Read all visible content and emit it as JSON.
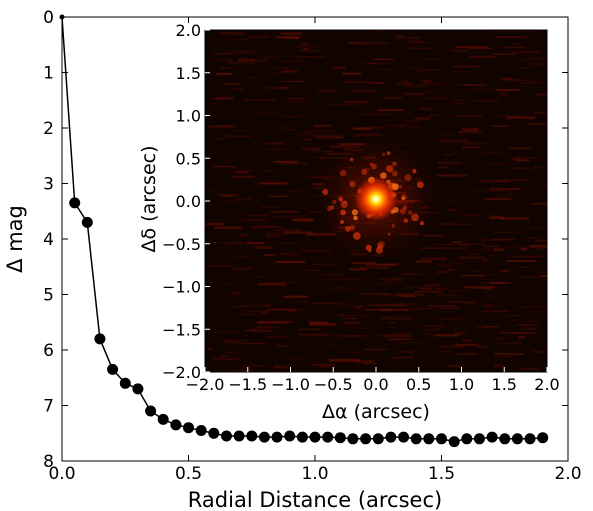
{
  "chart_data": [
    {
      "type": "line",
      "xlabel": "Radial Distance (arcsec)",
      "ylabel": "Δ mag",
      "xlim": [
        0.0,
        2.0
      ],
      "ylim": [
        0,
        8
      ],
      "y_inverted": true,
      "grid": false,
      "x_ticks": [
        "0.0",
        "0.5",
        "1.0",
        "1.5",
        "2.0"
      ],
      "y_ticks": [
        "0",
        "1",
        "2",
        "3",
        "4",
        "5",
        "6",
        "7",
        "8"
      ],
      "series": [
        {
          "marker": "circle",
          "color": "#000000",
          "x": [
            0.0,
            0.05,
            0.1,
            0.15,
            0.2,
            0.25,
            0.3,
            0.35,
            0.4,
            0.45,
            0.5,
            0.55,
            0.6,
            0.65,
            0.7,
            0.75,
            0.8,
            0.85,
            0.9,
            0.95,
            1.0,
            1.05,
            1.1,
            1.15,
            1.2,
            1.25,
            1.3,
            1.35,
            1.4,
            1.45,
            1.5,
            1.55,
            1.6,
            1.65,
            1.7,
            1.75,
            1.8,
            1.85,
            1.9
          ],
          "y": [
            0.0,
            3.35,
            3.7,
            5.8,
            6.35,
            6.6,
            6.7,
            7.1,
            7.25,
            7.35,
            7.4,
            7.45,
            7.5,
            7.55,
            7.55,
            7.55,
            7.57,
            7.57,
            7.55,
            7.57,
            7.57,
            7.57,
            7.58,
            7.6,
            7.6,
            7.6,
            7.57,
            7.57,
            7.6,
            7.6,
            7.6,
            7.65,
            7.6,
            7.6,
            7.57,
            7.6,
            7.6,
            7.6,
            7.58
          ]
        }
      ]
    },
    {
      "type": "heatmap",
      "xlabel": "Δα (arcsec)",
      "ylabel": "Δδ (arcsec)",
      "xlim": [
        -2.0,
        2.0
      ],
      "ylim": [
        -2.0,
        2.0
      ],
      "x_ticks": [
        "−2.0",
        "−1.5",
        "−1.0",
        "−0.5",
        "0.0",
        "0.5",
        "1.0",
        "1.5",
        "2.0"
      ],
      "y_ticks": [
        "2.0",
        "1.5",
        "1.0",
        "0.5",
        "0.0",
        "−0.5",
        "−1.0",
        "−1.5",
        "−2.0"
      ],
      "colormap": "hot",
      "source_position": [
        0.0,
        0.0
      ]
    }
  ]
}
